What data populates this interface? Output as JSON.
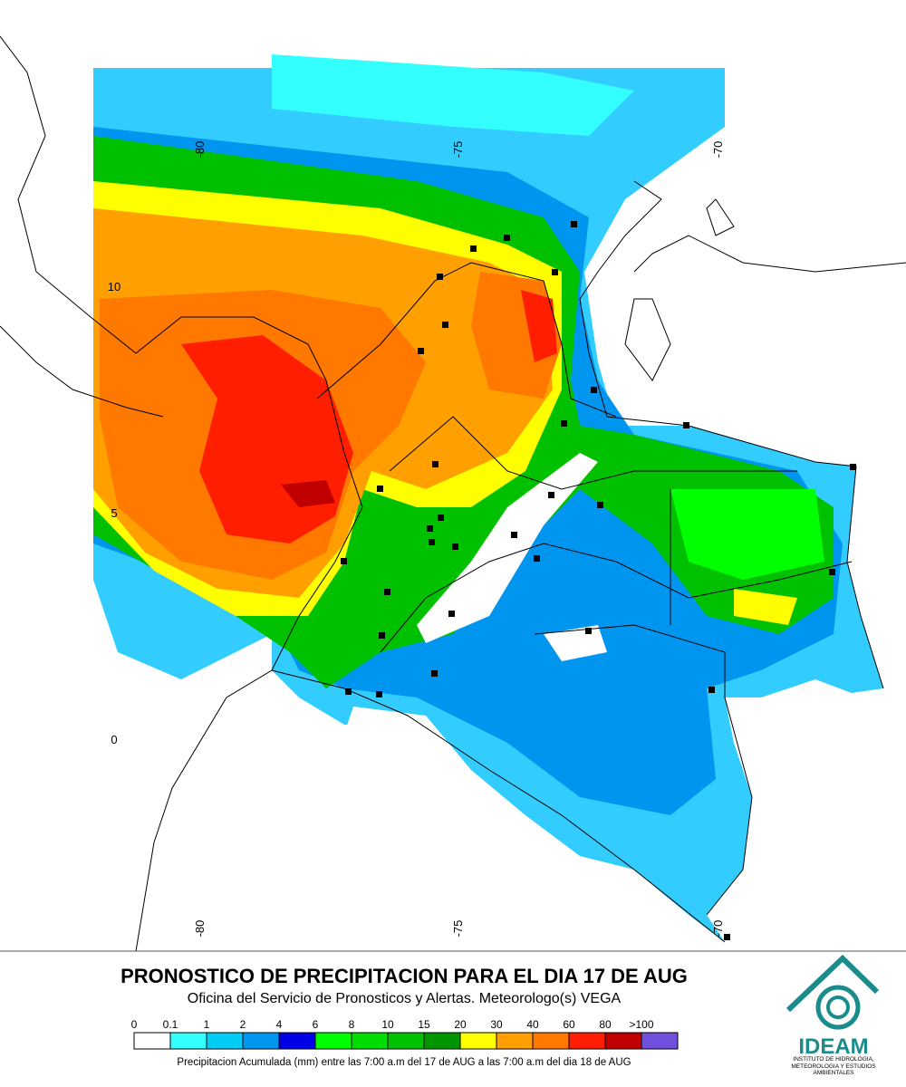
{
  "map": {
    "lon_labels_top": [
      "-80",
      "-75",
      "-70"
    ],
    "lon_labels_bottom": [
      "-80",
      "-75",
      "-70"
    ],
    "lat_labels": [
      "10",
      "5",
      "0"
    ]
  },
  "header": {
    "title": "PRONOSTICO DE PRECIPITACION PARA EL DIA 17 DE AUG",
    "subtitle": "Oficina del Servicio de Pronosticos y Alertas. Meteorologo(s) VEGA"
  },
  "legend": {
    "labels": [
      "0",
      "0.1",
      "1",
      "2",
      "4",
      "6",
      "8",
      "10",
      "15",
      "20",
      "30",
      "40",
      "60",
      "80",
      ">100"
    ],
    "colors": [
      "#ffffff",
      "#33ffff",
      "#00ccf5",
      "#0096f0",
      "#0000e6",
      "#00ff00",
      "#00dc00",
      "#00c000",
      "#009600",
      "#ffff00",
      "#ffa000",
      "#ff7800",
      "#ff1e00",
      "#c00000",
      "#7050dc"
    ],
    "caption": "Precipitacion Acumulada (mm) entre las 7:00 a.m del 17 de AUG a las 7:00 a.m del dia 18 de AUG"
  },
  "logo": {
    "name": "IDEAM",
    "description": "INSTITUTO DE HIDROLOGIA, METEOROLOGIA Y ESTUDIOS AMBIENTALES"
  }
}
